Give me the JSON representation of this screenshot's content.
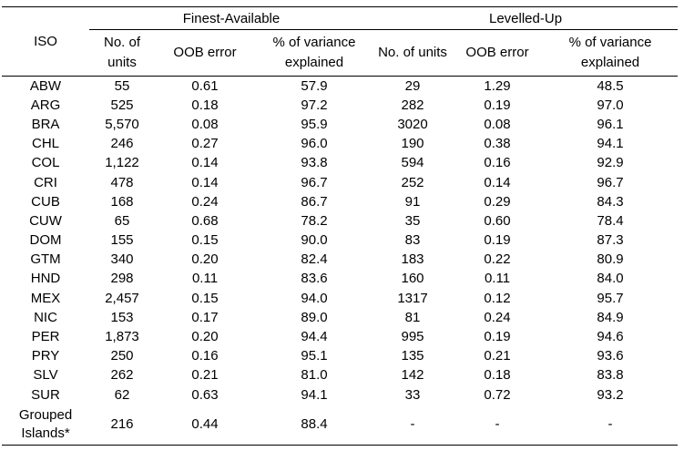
{
  "table": {
    "iso_header": "ISO",
    "groups": [
      {
        "label": "Finest-Available"
      },
      {
        "label": "Levelled-Up"
      }
    ],
    "columns": [
      "No. of units",
      "OOB error",
      "% of variance explained",
      "No. of units",
      "OOB error",
      "% of variance explained"
    ],
    "rows": [
      {
        "iso": "ABW",
        "cells": [
          "55",
          "0.61",
          "57.9",
          "29",
          "1.29",
          "48.5"
        ]
      },
      {
        "iso": "ARG",
        "cells": [
          "525",
          "0.18",
          "97.2",
          "282",
          "0.19",
          "97.0"
        ]
      },
      {
        "iso": "BRA",
        "cells": [
          "5,570",
          "0.08",
          "95.9",
          "3020",
          "0.08",
          "96.1"
        ]
      },
      {
        "iso": "CHL",
        "cells": [
          "246",
          "0.27",
          "96.0",
          "190",
          "0.38",
          "94.1"
        ]
      },
      {
        "iso": "COL",
        "cells": [
          "1,122",
          "0.14",
          "93.8",
          "594",
          "0.16",
          "92.9"
        ]
      },
      {
        "iso": "CRI",
        "cells": [
          "478",
          "0.14",
          "96.7",
          "252",
          "0.14",
          "96.7"
        ]
      },
      {
        "iso": "CUB",
        "cells": [
          "168",
          "0.24",
          "86.7",
          "91",
          "0.29",
          "84.3"
        ]
      },
      {
        "iso": "CUW",
        "cells": [
          "65",
          "0.68",
          "78.2",
          "35",
          "0.60",
          "78.4"
        ]
      },
      {
        "iso": "DOM",
        "cells": [
          "155",
          "0.15",
          "90.0",
          "83",
          "0.19",
          "87.3"
        ]
      },
      {
        "iso": "GTM",
        "cells": [
          "340",
          "0.20",
          "82.4",
          "183",
          "0.22",
          "80.9"
        ]
      },
      {
        "iso": "HND",
        "cells": [
          "298",
          "0.11",
          "83.6",
          "160",
          "0.11",
          "84.0"
        ]
      },
      {
        "iso": "MEX",
        "cells": [
          "2,457",
          "0.15",
          "94.0",
          "1317",
          "0.12",
          "95.7"
        ]
      },
      {
        "iso": "NIC",
        "cells": [
          "153",
          "0.17",
          "89.0",
          "81",
          "0.24",
          "84.9"
        ]
      },
      {
        "iso": "PER",
        "cells": [
          "1,873",
          "0.20",
          "94.4",
          "995",
          "0.19",
          "94.6"
        ]
      },
      {
        "iso": "PRY",
        "cells": [
          "250",
          "0.16",
          "95.1",
          "135",
          "0.21",
          "93.6"
        ]
      },
      {
        "iso": "SLV",
        "cells": [
          "262",
          "0.21",
          "81.0",
          "142",
          "0.18",
          "83.8"
        ]
      },
      {
        "iso": "SUR",
        "cells": [
          "62",
          "0.63",
          "94.1",
          "33",
          "0.72",
          "93.2"
        ]
      },
      {
        "iso": "Grouped Islands*",
        "cells": [
          "216",
          "0.44",
          "88.4",
          "-",
          "-",
          "-"
        ]
      }
    ]
  }
}
